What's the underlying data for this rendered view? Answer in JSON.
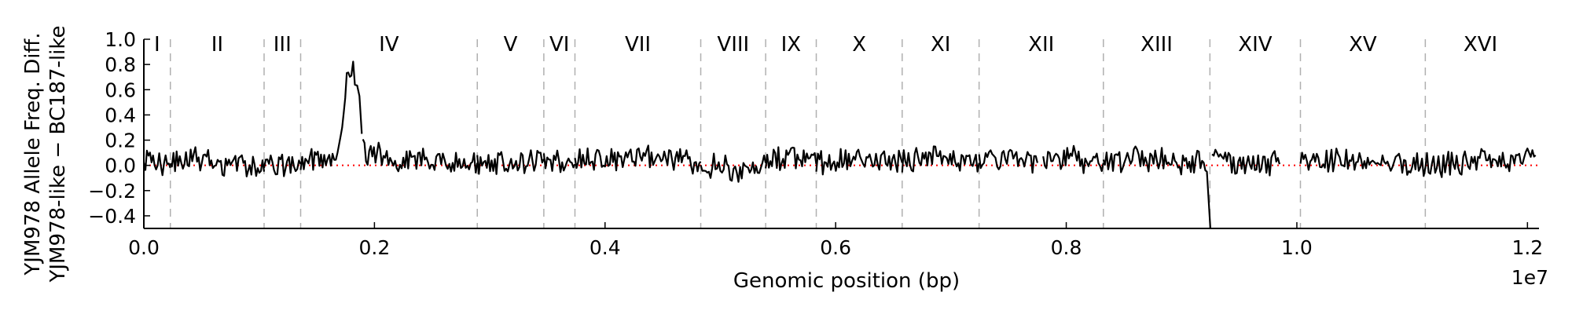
{
  "chart_data": {
    "type": "line",
    "title": "",
    "xlabel": "Genomic position (bp)",
    "ylabel_lines": [
      "YJM978 Allele Freq. Diff.",
      "YJM978-like − BC187-like"
    ],
    "x_exponent_label": "1e7",
    "xlim": [
      0,
      12100000
    ],
    "ylim": [
      -0.5,
      1.0
    ],
    "x_ticks": [
      0,
      2000000,
      4000000,
      6000000,
      8000000,
      10000000,
      12000000
    ],
    "x_tick_labels": [
      "0.0",
      "0.2",
      "0.4",
      "0.6",
      "0.8",
      "1.0",
      "1.2"
    ],
    "y_ticks": [
      1.0,
      0.8,
      0.6,
      0.4,
      0.2,
      0.0,
      -0.2,
      -0.4
    ],
    "y_tick_labels": [
      "1.0",
      "0.8",
      "0.6",
      "0.4",
      "0.2",
      "0.0",
      "−0.2",
      "−0.4"
    ],
    "reference_line": {
      "y": 0.0,
      "color": "#ff0000",
      "style": "dotted"
    },
    "chromosome_boundaries": [
      230000,
      1043000,
      1360000,
      2892000,
      3469000,
      3739000,
      4830000,
      5393000,
      5832000,
      6577000,
      7244000,
      8322000,
      9246000,
      10031000,
      11114000
    ],
    "chromosomes": [
      {
        "name": "I",
        "start": 0,
        "end": 230000
      },
      {
        "name": "II",
        "start": 230000,
        "end": 1043000
      },
      {
        "name": "III",
        "start": 1043000,
        "end": 1360000
      },
      {
        "name": "IV",
        "start": 1360000,
        "end": 2892000
      },
      {
        "name": "V",
        "start": 2892000,
        "end": 3469000
      },
      {
        "name": "VI",
        "start": 3469000,
        "end": 3739000
      },
      {
        "name": "VII",
        "start": 3739000,
        "end": 4830000
      },
      {
        "name": "VIII",
        "start": 4830000,
        "end": 5393000
      },
      {
        "name": "IX",
        "start": 5393000,
        "end": 5832000
      },
      {
        "name": "X",
        "start": 5832000,
        "end": 6577000
      },
      {
        "name": "XI",
        "start": 6577000,
        "end": 7244000
      },
      {
        "name": "XII",
        "start": 7244000,
        "end": 8322000
      },
      {
        "name": "XIII",
        "start": 8322000,
        "end": 9246000
      },
      {
        "name": "XIV",
        "start": 9246000,
        "end": 10031000
      },
      {
        "name": "XV",
        "start": 10031000,
        "end": 11114000
      },
      {
        "name": "XVI",
        "start": 11114000,
        "end": 12071000
      }
    ],
    "series": [
      {
        "color": "#000000",
        "segments": [
          {
            "x": [
              0,
              120000,
              230000
            ],
            "y": [
              0.03,
              0.05,
              -0.02
            ]
          },
          {
            "x": [
              230000,
              420000,
              640000,
              850000,
              1043000
            ],
            "y": [
              0.04,
              0.06,
              0.01,
              0.03,
              -0.05
            ]
          },
          {
            "x": [
              1043000,
              1200000,
              1360000
            ],
            "y": [
              0.02,
              0.0,
              0.01
            ]
          },
          {
            "x": [
              1360000,
              1550000,
              1680000,
              1720000,
              1760000,
              1800000,
              1830000,
              1850000,
              1870000,
              1890000
            ],
            "y": [
              0.02,
              0.05,
              0.1,
              0.3,
              0.65,
              0.75,
              0.7,
              0.6,
              0.55,
              0.25
            ]
          },
          {
            "x": [
              1900000,
              2050000,
              2250000,
              2450000,
              2650000,
              2892000
            ],
            "y": [
              0.12,
              0.08,
              0.02,
              0.05,
              0.03,
              0.02
            ]
          },
          {
            "x": [
              2892000,
              3100000,
              3300000,
              3469000
            ],
            "y": [
              0.01,
              0.03,
              0.02,
              0.05
            ]
          },
          {
            "x": [
              3469000,
              3600000,
              3739000
            ],
            "y": [
              0.04,
              0.02,
              0.01
            ]
          },
          {
            "x": [
              3739000,
              4000000,
              4250000,
              4500000,
              4830000
            ],
            "y": [
              0.02,
              0.06,
              0.04,
              0.07,
              0.03
            ]
          },
          {
            "x": [
              4830000,
              5000000,
              5200000,
              5393000
            ],
            "y": [
              -0.02,
              0.0,
              -0.05,
              0.02
            ]
          },
          {
            "x": [
              5393000,
              5600000,
              5832000
            ],
            "y": [
              0.03,
              0.05,
              0.01
            ]
          },
          {
            "x": [
              5832000,
              6100000,
              6350000,
              6577000
            ],
            "y": [
              0.02,
              0.06,
              0.04,
              0.02
            ]
          },
          {
            "x": [
              6577000,
              6850000,
              7050000,
              7244000
            ],
            "y": [
              0.03,
              0.07,
              0.05,
              0.02
            ]
          },
          {
            "x": [
              7244000,
              7500000,
              7650000,
              7750000
            ],
            "y": [
              0.03,
              0.05,
              0.04,
              0.02
            ]
          },
          {
            "x": [
              7800000,
              8050000,
              8322000
            ],
            "y": [
              0.03,
              0.05,
              0.02
            ]
          },
          {
            "x": [
              8322000,
              8600000,
              8900000,
              9150000,
              9220000,
              9250000
            ],
            "y": [
              0.02,
              0.05,
              0.03,
              0.02,
              -0.05,
              -0.5
            ]
          },
          {
            "x": [
              9265000,
              9450000,
              9650000,
              9850000
            ],
            "y": [
              0.08,
              0.02,
              0.0,
              0.01
            ]
          },
          {
            "x": [
              10031000,
              10300000,
              10600000,
              10900000,
              11114000
            ],
            "y": [
              0.02,
              0.04,
              0.03,
              0.02,
              -0.02
            ]
          },
          {
            "x": [
              11114000,
              11400000,
              11700000,
              12000000,
              12071000
            ],
            "y": [
              0.0,
              0.02,
              0.04,
              0.05,
              0.08
            ]
          }
        ]
      }
    ]
  }
}
